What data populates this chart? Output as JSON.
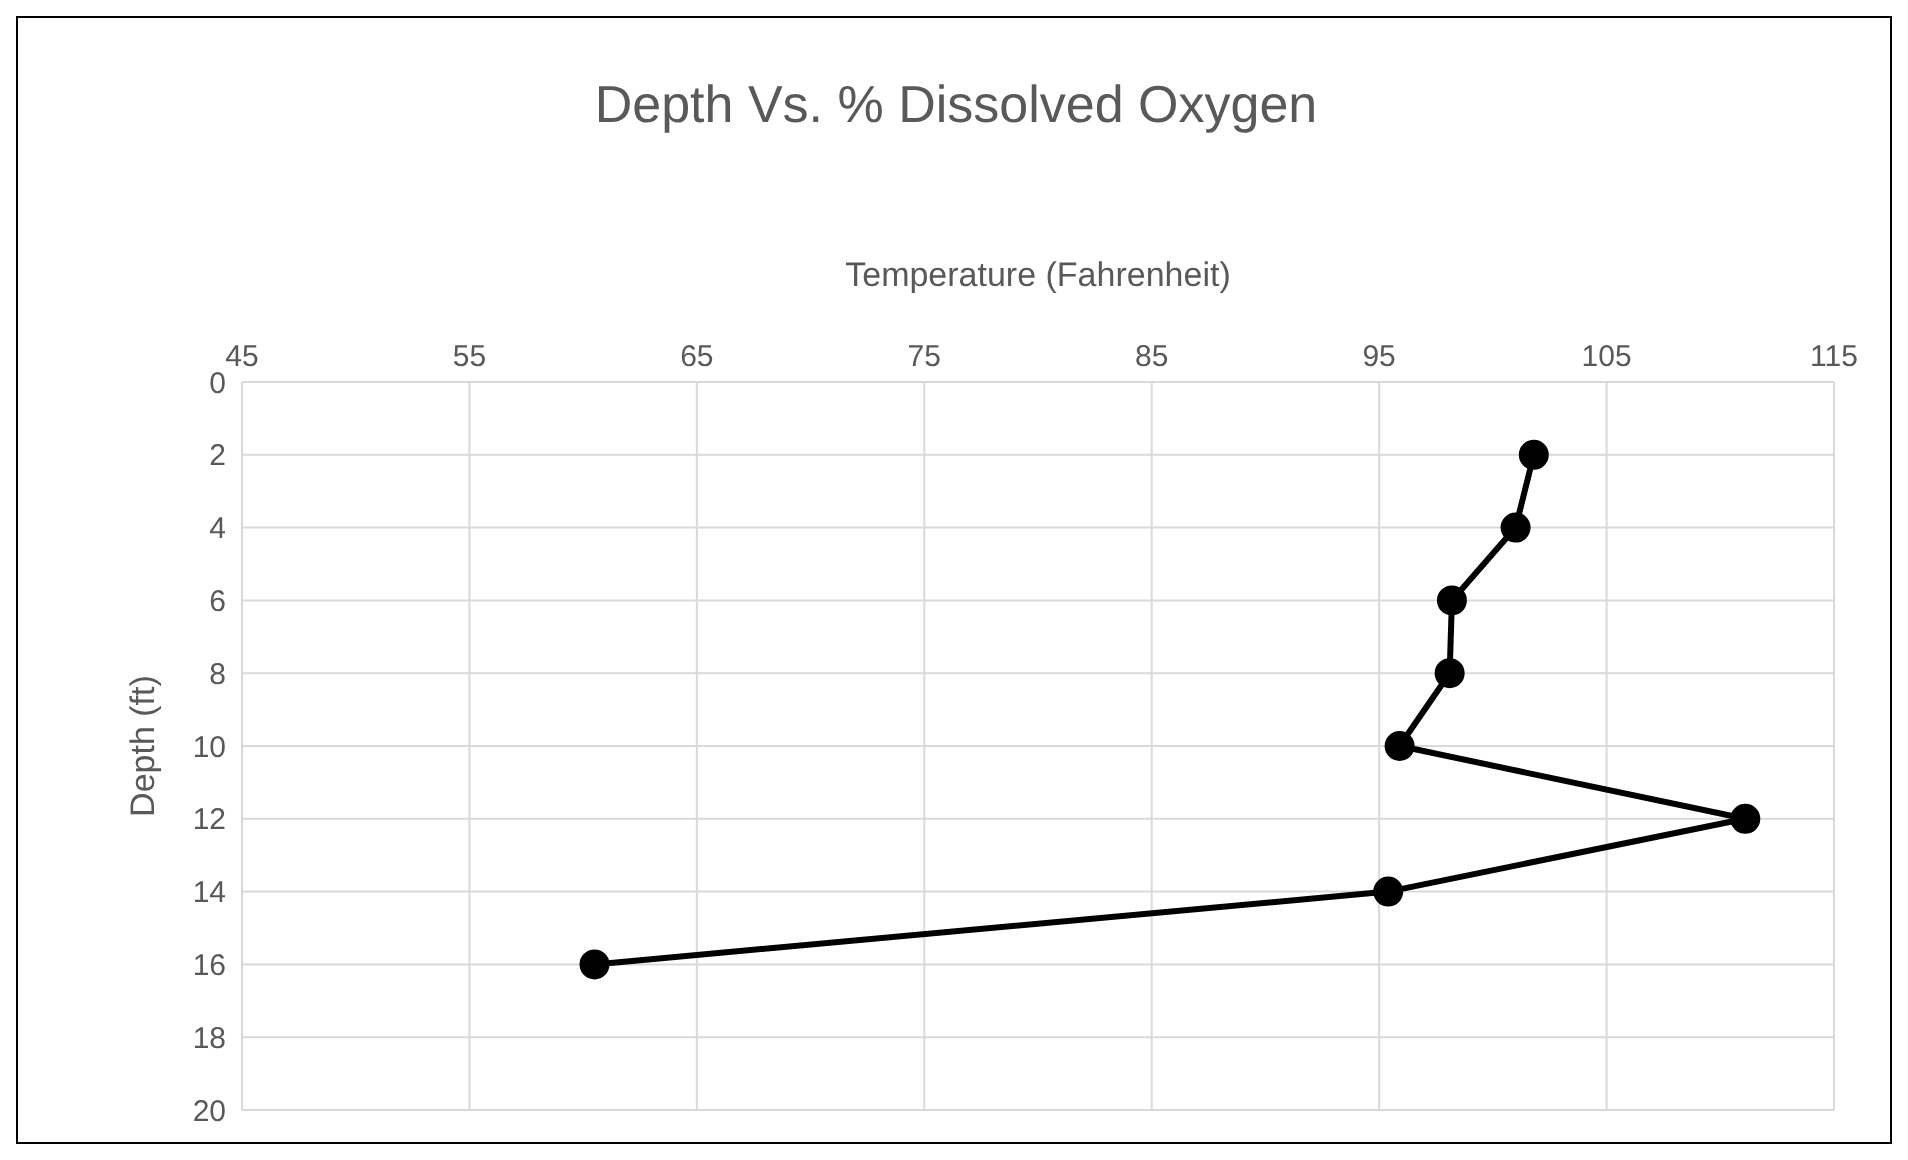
{
  "chart_data": {
    "type": "line",
    "title": "Depth Vs. % Dissolved Oxygen",
    "xlabel": "Temperature (Fahrenheit)",
    "ylabel": "Depth (ft)",
    "x": [
      101.8,
      101.0,
      98.2,
      98.1,
      95.9,
      111.1,
      95.4,
      60.5
    ],
    "series": [
      {
        "color": "#000000",
        "values": [
          2,
          4,
          6,
          8,
          10,
          12,
          14,
          16
        ]
      }
    ],
    "xlim": [
      45,
      115
    ],
    "xticks": [
      45,
      55,
      65,
      75,
      85,
      95,
      105,
      115
    ],
    "ylim": [
      20,
      0
    ],
    "yticks": [
      0,
      2,
      4,
      6,
      8,
      10,
      12,
      14,
      16,
      18,
      20
    ],
    "grid": true,
    "marker": "circle",
    "line_style": "solid"
  }
}
